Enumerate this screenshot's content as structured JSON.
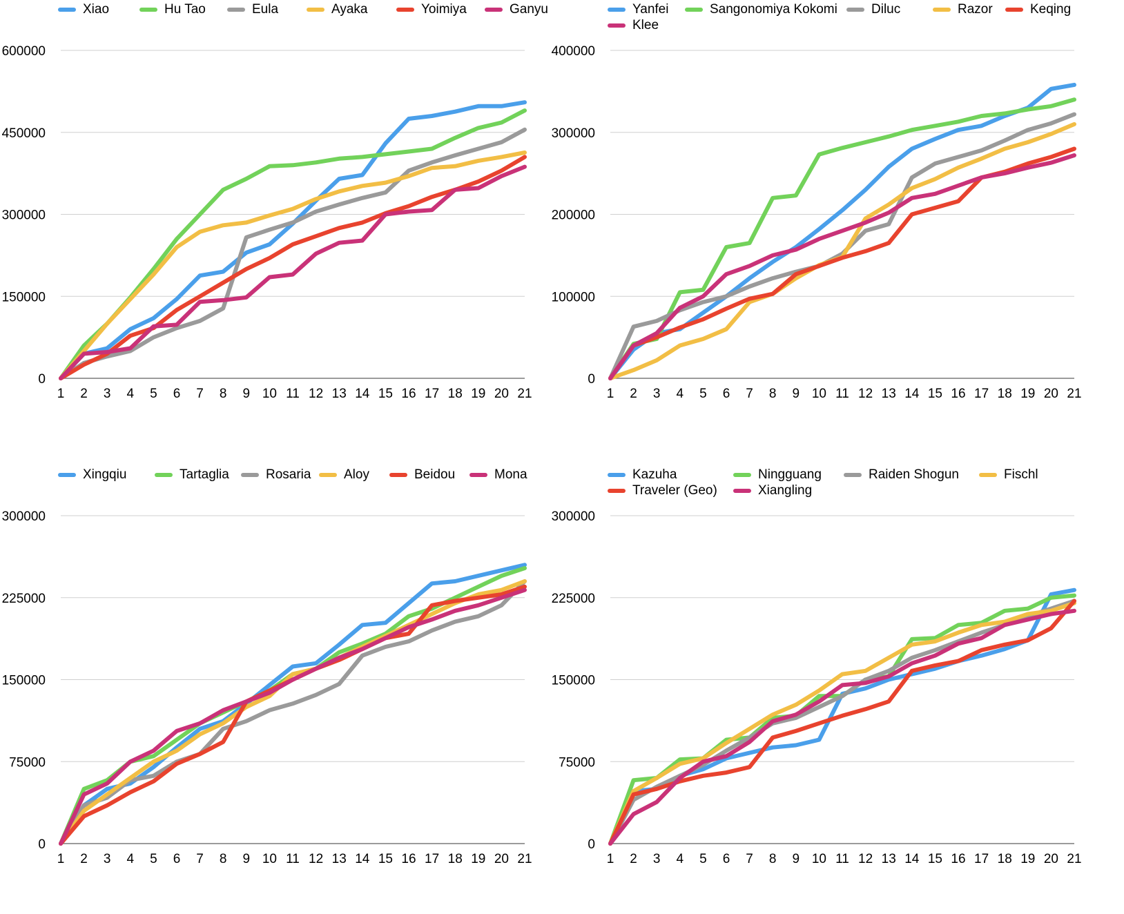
{
  "chart_data": [
    {
      "type": "line",
      "x": [
        1,
        2,
        3,
        4,
        5,
        6,
        7,
        8,
        9,
        10,
        11,
        12,
        13,
        14,
        15,
        16,
        17,
        18,
        19,
        20,
        21
      ],
      "yticks": [
        "0",
        "150000",
        "300000",
        "450000",
        "600000"
      ],
      "ylim": [
        0,
        600000
      ],
      "grid": true,
      "legend": "top",
      "series": [
        {
          "name": "Xiao",
          "color": "#4A9FEA",
          "values": [
            0,
            45000,
            55000,
            90000,
            110000,
            145000,
            188000,
            195000,
            230000,
            245000,
            283000,
            325000,
            365000,
            372000,
            430000,
            475000,
            480000,
            488000,
            498000,
            498000,
            505000
          ]
        },
        {
          "name": "Hu Tao",
          "color": "#72D25A",
          "values": [
            0,
            60000,
            100000,
            148000,
            200000,
            255000,
            300000,
            345000,
            365000,
            388000,
            390000,
            395000,
            402000,
            405000,
            410000,
            415000,
            420000,
            440000,
            458000,
            468000,
            490000
          ]
        },
        {
          "name": "Eula",
          "color": "#9A9A9A",
          "values": [
            0,
            28000,
            40000,
            50000,
            75000,
            92000,
            105000,
            128000,
            258000,
            272000,
            285000,
            305000,
            318000,
            330000,
            340000,
            380000,
            395000,
            408000,
            420000,
            432000,
            455000
          ]
        },
        {
          "name": "Ayaka",
          "color": "#F2BE45",
          "values": [
            0,
            50000,
            100000,
            145000,
            190000,
            240000,
            268000,
            280000,
            285000,
            298000,
            310000,
            328000,
            342000,
            352000,
            358000,
            370000,
            385000,
            388000,
            398000,
            405000,
            413000
          ]
        },
        {
          "name": "Yoimiya",
          "color": "#E8432E",
          "values": [
            0,
            25000,
            45000,
            78000,
            92000,
            125000,
            150000,
            175000,
            200000,
            220000,
            245000,
            260000,
            275000,
            285000,
            302000,
            315000,
            332000,
            345000,
            360000,
            380000,
            405000
          ]
        },
        {
          "name": "Ganyu",
          "color": "#C93278",
          "values": [
            0,
            45000,
            48000,
            55000,
            95000,
            98000,
            140000,
            143000,
            148000,
            185000,
            190000,
            228000,
            248000,
            252000,
            300000,
            305000,
            308000,
            345000,
            348000,
            370000,
            387000
          ]
        }
      ]
    },
    {
      "type": "line",
      "x": [
        1,
        2,
        3,
        4,
        5,
        6,
        7,
        8,
        9,
        10,
        11,
        12,
        13,
        14,
        15,
        16,
        17,
        18,
        19,
        20,
        21
      ],
      "yticks": [
        "0",
        "100000",
        "200000",
        "300000",
        "400000"
      ],
      "ylim": [
        0,
        400000
      ],
      "grid": true,
      "legend": "top",
      "series": [
        {
          "name": "Yanfei",
          "color": "#4A9FEA",
          "values": [
            0,
            35000,
            55000,
            60000,
            80000,
            100000,
            122000,
            142000,
            160000,
            182000,
            205000,
            230000,
            258000,
            280000,
            292000,
            303000,
            308000,
            320000,
            330000,
            353000,
            358000
          ]
        },
        {
          "name": "Sangonomiya Kokomi",
          "color": "#72D25A",
          "values": [
            0,
            42000,
            48000,
            105000,
            108000,
            160000,
            165000,
            220000,
            223000,
            273000,
            281000,
            288000,
            295000,
            303000,
            308000,
            313000,
            320000,
            323000,
            328000,
            332000,
            340000
          ]
        },
        {
          "name": "Diluc",
          "color": "#9A9A9A",
          "values": [
            0,
            63000,
            70000,
            83000,
            93000,
            100000,
            112000,
            122000,
            130000,
            137000,
            152000,
            180000,
            188000,
            245000,
            262000,
            270000,
            278000,
            290000,
            303000,
            311000,
            322000
          ]
        },
        {
          "name": "Razor",
          "color": "#F2BE45",
          "values": [
            0,
            10000,
            22000,
            40000,
            48000,
            60000,
            93000,
            103000,
            122000,
            138000,
            148000,
            195000,
            212000,
            232000,
            243000,
            257000,
            268000,
            280000,
            288000,
            298000,
            310000
          ]
        },
        {
          "name": "Keqing",
          "color": "#E8432E",
          "values": [
            0,
            40000,
            50000,
            62000,
            72000,
            85000,
            97000,
            103000,
            127000,
            137000,
            147000,
            155000,
            165000,
            200000,
            208000,
            216000,
            245000,
            252000,
            262000,
            270000,
            280000
          ]
        },
        {
          "name": "Klee",
          "color": "#C93278",
          "values": [
            0,
            40000,
            55000,
            86000,
            100000,
            127000,
            137000,
            150000,
            157000,
            170000,
            180000,
            190000,
            202000,
            220000,
            225000,
            235000,
            245000,
            250000,
            257000,
            263000,
            272000
          ]
        }
      ]
    },
    {
      "type": "line",
      "x": [
        1,
        2,
        3,
        4,
        5,
        6,
        7,
        8,
        9,
        10,
        11,
        12,
        13,
        14,
        15,
        16,
        17,
        18,
        19,
        20,
        21
      ],
      "yticks": [
        "0",
        "75000",
        "150000",
        "225000",
        "300000"
      ],
      "ylim": [
        0,
        300000
      ],
      "grid": true,
      "legend": "top",
      "series": [
        {
          "name": "Xingqiu",
          "color": "#4A9FEA",
          "values": [
            0,
            35000,
            50000,
            55000,
            70000,
            88000,
            105000,
            112000,
            128000,
            145000,
            162000,
            165000,
            182000,
            200000,
            202000,
            220000,
            238000,
            240000,
            245000,
            250000,
            255000
          ]
        },
        {
          "name": "Tartaglia",
          "color": "#72D25A",
          "values": [
            0,
            50000,
            58000,
            75000,
            80000,
            95000,
            110000,
            120000,
            130000,
            140000,
            155000,
            160000,
            175000,
            183000,
            192000,
            208000,
            215000,
            225000,
            235000,
            245000,
            252000
          ]
        },
        {
          "name": "Rosaria",
          "color": "#9A9A9A",
          "values": [
            0,
            35000,
            42000,
            58000,
            62000,
            75000,
            82000,
            105000,
            112000,
            122000,
            128000,
            136000,
            146000,
            172000,
            180000,
            185000,
            195000,
            203000,
            208000,
            218000,
            240000
          ]
        },
        {
          "name": "Aloy",
          "color": "#F2BE45",
          "values": [
            0,
            30000,
            45000,
            60000,
            75000,
            85000,
            100000,
            110000,
            125000,
            135000,
            155000,
            160000,
            170000,
            180000,
            190000,
            200000,
            210000,
            220000,
            228000,
            232000,
            240000
          ]
        },
        {
          "name": "Beidou",
          "color": "#E8432E",
          "values": [
            0,
            25000,
            35000,
            47000,
            57000,
            73000,
            82000,
            93000,
            130000,
            140000,
            150000,
            160000,
            168000,
            178000,
            188000,
            192000,
            218000,
            222000,
            225000,
            228000,
            235000
          ]
        },
        {
          "name": "Mona",
          "color": "#C93278",
          "values": [
            0,
            45000,
            55000,
            75000,
            85000,
            103000,
            110000,
            122000,
            130000,
            138000,
            150000,
            160000,
            170000,
            178000,
            188000,
            198000,
            205000,
            213000,
            218000,
            225000,
            232000
          ]
        }
      ]
    },
    {
      "type": "line",
      "x": [
        1,
        2,
        3,
        4,
        5,
        6,
        7,
        8,
        9,
        10,
        11,
        12,
        13,
        14,
        15,
        16,
        17,
        18,
        19,
        20,
        21
      ],
      "yticks": [
        "0",
        "75000",
        "150000",
        "225000",
        "300000"
      ],
      "ylim": [
        0,
        300000
      ],
      "grid": true,
      "legend": "top",
      "series": [
        {
          "name": "Kazuha",
          "color": "#4A9FEA",
          "values": [
            0,
            48000,
            50000,
            62000,
            68000,
            78000,
            83000,
            88000,
            90000,
            95000,
            137000,
            142000,
            150000,
            155000,
            160000,
            167000,
            172000,
            178000,
            186000,
            228000,
            232000
          ]
        },
        {
          "name": "Ningguang",
          "color": "#72D25A",
          "values": [
            0,
            58000,
            60000,
            77000,
            78000,
            95000,
            97000,
            115000,
            117000,
            135000,
            135000,
            150000,
            153000,
            187000,
            188000,
            200000,
            202000,
            213000,
            215000,
            225000,
            227000
          ]
        },
        {
          "name": "Raiden Shogun",
          "color": "#9A9A9A",
          "values": [
            0,
            40000,
            52000,
            62000,
            72000,
            85000,
            97000,
            110000,
            115000,
            125000,
            135000,
            150000,
            158000,
            170000,
            177000,
            185000,
            193000,
            200000,
            208000,
            215000,
            222000
          ]
        },
        {
          "name": "Fischl",
          "color": "#F2BE45",
          "values": [
            0,
            48000,
            60000,
            73000,
            78000,
            92000,
            105000,
            118000,
            127000,
            140000,
            155000,
            158000,
            170000,
            182000,
            185000,
            193000,
            200000,
            203000,
            210000,
            213000,
            220000
          ]
        },
        {
          "name": "Traveler (Geo)",
          "color": "#E8432E",
          "values": [
            0,
            45000,
            50000,
            57000,
            62000,
            65000,
            70000,
            97000,
            103000,
            110000,
            117000,
            123000,
            130000,
            158000,
            163000,
            167000,
            177000,
            182000,
            186000,
            197000,
            222000
          ]
        },
        {
          "name": "Xiangling",
          "color": "#C93278",
          "values": [
            0,
            27000,
            38000,
            60000,
            75000,
            80000,
            93000,
            112000,
            118000,
            130000,
            145000,
            147000,
            153000,
            165000,
            172000,
            183000,
            188000,
            200000,
            205000,
            210000,
            213000
          ]
        }
      ]
    }
  ]
}
